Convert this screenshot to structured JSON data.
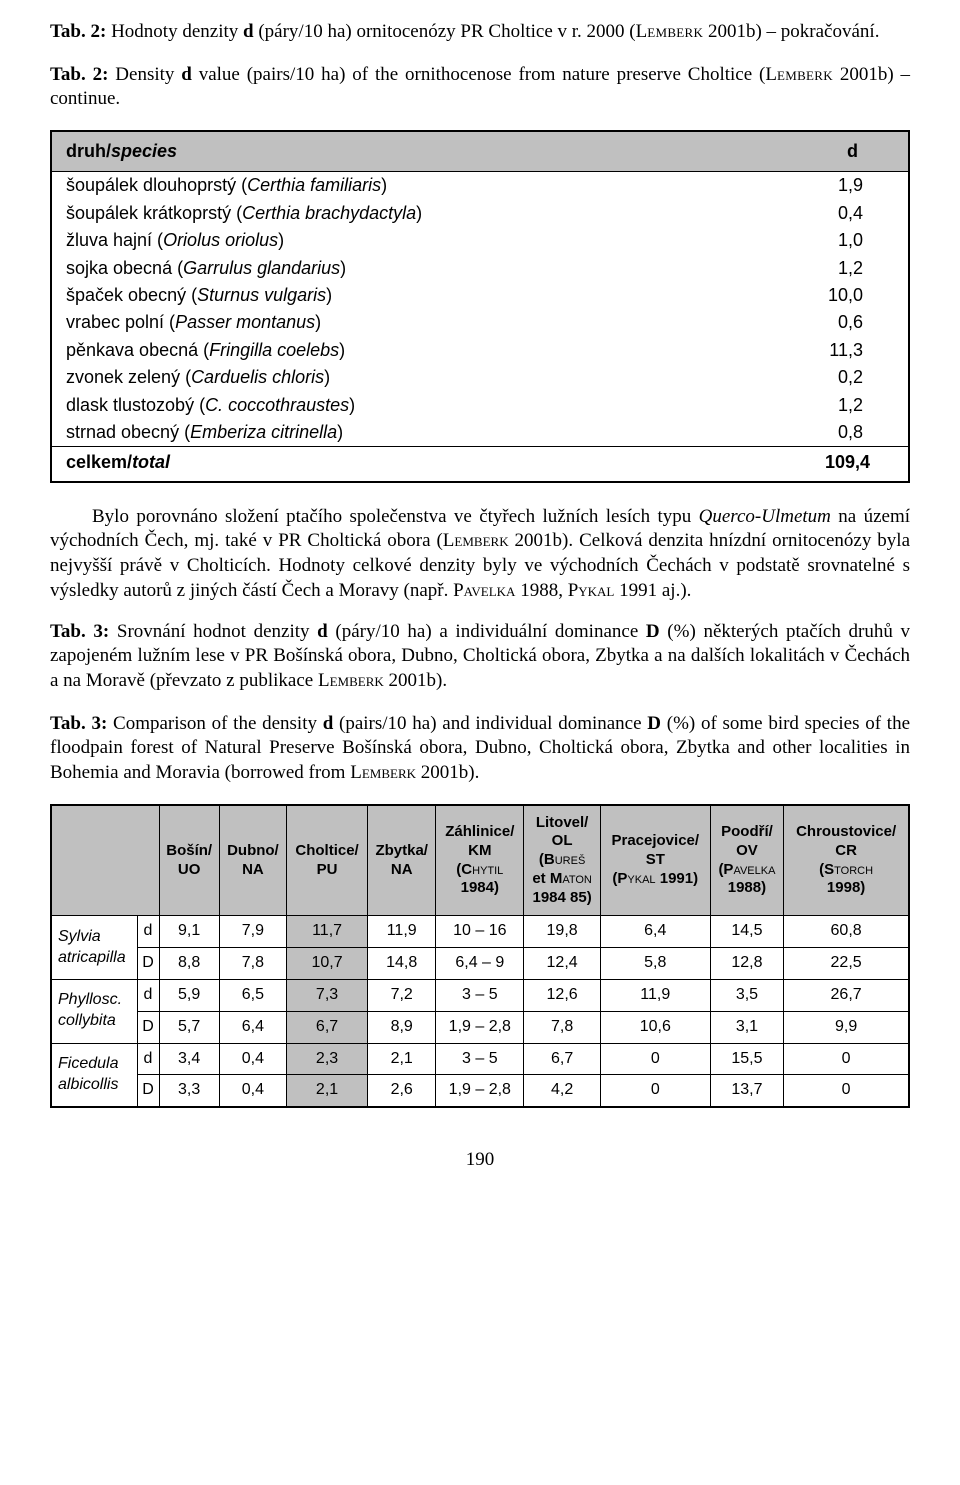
{
  "caption1": {
    "boldPrefix": "Tab. 2:",
    "textA": " Hodnoty denzity ",
    "bold_d": "d",
    "textB": " (páry/10 ha) ornitocenózy PR Choltice v r. 2000 (L",
    "sc1": "emberk",
    "textC": " 2001b) – pokračování."
  },
  "caption2": {
    "boldPrefix": "Tab. 2:",
    "textA": " Density ",
    "bold_d": "d",
    "textB": " value (pairs/10 ha) of the ornithocenose from nature preserve Choltice (L",
    "sc1": "emberk",
    "textC": " 2001b) – continue."
  },
  "table1": {
    "header": {
      "col1a": "druh/",
      "col1b": "species",
      "col2": "d"
    },
    "rows": [
      {
        "name1": "šoupálek dlouhoprstý (",
        "latin": "Certhia familiaris",
        "name2": ")",
        "val": "1,9"
      },
      {
        "name1": "šoupálek krátkoprstý (",
        "latin": "Certhia brachydactyla",
        "name2": ")",
        "val": "0,4"
      },
      {
        "name1": "žluva hajní (",
        "latin": "Oriolus oriolus",
        "name2": ")",
        "val": "1,0"
      },
      {
        "name1": "sojka obecná (",
        "latin": "Garrulus glandarius",
        "name2": ")",
        "val": "1,2"
      },
      {
        "name1": "špaček obecný (",
        "latin": "Sturnus vulgaris",
        "name2": ")",
        "val": "10,0"
      },
      {
        "name1": "vrabec polní (",
        "latin": "Passer montanus",
        "name2": ")",
        "val": "0,6"
      },
      {
        "name1": "pěnkava obecná (",
        "latin": "Fringilla coelebs",
        "name2": ")",
        "val": "11,3"
      },
      {
        "name1": "zvonek zelený (",
        "latin": "Carduelis chloris",
        "name2": ")",
        "val": "0,2"
      },
      {
        "name1": "dlask tlustozobý (",
        "latin": "C. coccothraustes",
        "name2": ")",
        "val": "1,2"
      },
      {
        "name1": "strnad obecný (",
        "latin": "Emberiza citrinella",
        "name2": ")",
        "val": "0,8"
      }
    ],
    "footer": {
      "label1": "celkem/",
      "label2": "total",
      "val": "109,4"
    }
  },
  "paragraph1": {
    "p1": "Bylo porovnáno složení ptačího společenstva ve čtyřech lužních lesích typu ",
    "p2": "Querco-Ulmetum",
    "p3": " na území východních Čech, mj. také v PR Choltická obora (L",
    "p4": "emberk",
    "p5": " 2001b). Celková denzita hnízdní ornitocenózy byla nejvyšší právě v Cholticích. Hodnoty celkové denzity byly ve východních Čechách v podstatě srovnatelné s výsledky autorů z jiných částí Čech a Moravy (např. P",
    "p6": "avelka",
    "p7": " 1988, P",
    "p8": "ykal",
    "p9": " 1991 aj.)."
  },
  "caption3": {
    "boldPrefix": "Tab. 3:",
    "t1": " Srovnání hodnot denzity ",
    "bd": "d",
    "t2": " (páry/10 ha) a individuální dominance ",
    "bD": "D",
    "t3": " (%) některých ptačích druhů v zapojeném lužním lese v PR Bošínská obora, Dubno, Choltická obora, Zbytka a na dalších lokalitách v Čechách a na Moravě (převzato z publikace L",
    "sc": "emberk",
    "t4": " 2001b)."
  },
  "caption4": {
    "boldPrefix": "Tab. 3:",
    "t1": " Comparison of the density ",
    "bd": "d",
    "t2": " (pairs/10 ha) and individual dominance ",
    "bD": "D",
    "t3": " (%) of some bird species of the floodpain forest of Natural Preserve Bošínská obora, Dubno, Choltická obora, Zbytka and other localities in Bohemia and Moravia (borrowed from L",
    "sc": "emberk",
    "t4": " 2001b)."
  },
  "table2": {
    "headers": {
      "h1a": "Bošín/",
      "h1b": "UO",
      "h2a": "Dubno/",
      "h2b": "NA",
      "h3a": "Choltice/",
      "h3b": "PU",
      "h4a": "Zbytka/",
      "h4b": "NA",
      "h5a": "Záhlinice/",
      "h5b": "KM",
      "h5c": "(C",
      "h5sc": "hytil",
      "h5d": "1984)",
      "h6a": "Litovel/",
      "h6b": "OL",
      "h6c": "(B",
      "h6sc1": "ureš",
      "h6d": "et M",
      "h6sc2": "aton",
      "h6e": "1984  85)",
      "h7a": "Pracejovice/",
      "h7b": "ST",
      "h7c": "(P",
      "h7sc": "ykal",
      "h7d": " 1991)",
      "h8a": "Poodří/",
      "h8b": "OV",
      "h8c": "(P",
      "h8sc": "avelka",
      "h8d": "1988)",
      "h9a": "Chroustovice/",
      "h9b": "CR",
      "h9c": "(S",
      "h9sc": "torch",
      "h9d": "1998)"
    },
    "species": [
      {
        "name": "Sylvia atricapilla",
        "d": [
          "9,1",
          "7,9",
          "11,7",
          "11,9",
          "10 – 16",
          "19,8",
          "6,4",
          "14,5",
          "60,8"
        ],
        "D": [
          "8,8",
          "7,8",
          "10,7",
          "14,8",
          "6,4 – 9",
          "12,4",
          "5,8",
          "12,8",
          "22,5"
        ]
      },
      {
        "name": "Phyllosc. collybita",
        "d": [
          "5,9",
          "6,5",
          "7,3",
          "7,2",
          "3 – 5",
          "12,6",
          "11,9",
          "3,5",
          "26,7"
        ],
        "D": [
          "5,7",
          "6,4",
          "6,7",
          "8,9",
          "1,9 – 2,8",
          "7,8",
          "10,6",
          "3,1",
          "9,9"
        ]
      },
      {
        "name": "Ficedula albicollis",
        "d": [
          "3,4",
          "0,4",
          "2,3",
          "2,1",
          "3 – 5",
          "6,7",
          "0",
          "15,5",
          "0"
        ],
        "D": [
          "3,3",
          "0,4",
          "2,1",
          "2,6",
          "1,9 – 2,8",
          "4,2",
          "0",
          "13,7",
          "0"
        ]
      }
    ],
    "metric_d": "d",
    "metric_D": "D"
  },
  "pageNumber": "190",
  "colors": {
    "background": "#ffffff",
    "text": "#000000",
    "tableBorder": "#000000",
    "headerFill": "#c0c0c0"
  }
}
